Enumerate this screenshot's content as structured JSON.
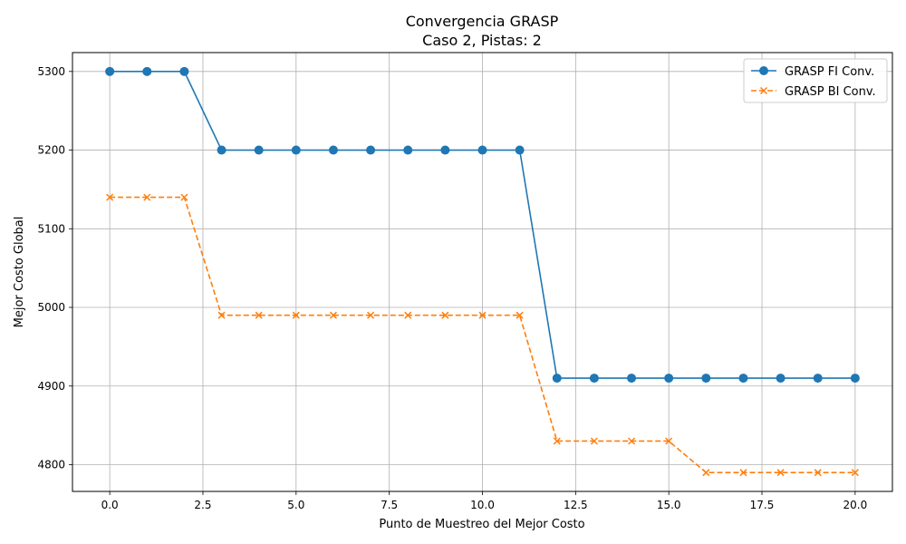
{
  "chart_data": {
    "type": "line",
    "title": "Convergencia GRASP",
    "subtitle": "Caso 2, Pistas: 2",
    "xlabel": "Punto de Muestreo del Mejor Costo",
    "ylabel": "Mejor Costo Global",
    "xlim": [
      -1.0,
      21.0
    ],
    "ylim": [
      4766,
      5324
    ],
    "x_ticks": [
      0.0,
      2.5,
      5.0,
      7.5,
      10.0,
      12.5,
      15.0,
      17.5,
      20.0
    ],
    "x_tick_labels": [
      "0.0",
      "2.5",
      "5.0",
      "7.5",
      "10.0",
      "12.5",
      "15.0",
      "17.5",
      "20.0"
    ],
    "y_ticks": [
      4800,
      4900,
      5000,
      5100,
      5200,
      5300
    ],
    "y_tick_labels": [
      "4800",
      "4900",
      "5000",
      "5100",
      "5200",
      "5300"
    ],
    "grid": true,
    "legend_position": "top-right",
    "x": [
      0,
      1,
      2,
      3,
      4,
      5,
      6,
      7,
      8,
      9,
      10,
      11,
      12,
      13,
      14,
      15,
      16,
      17,
      18,
      19,
      20
    ],
    "series": [
      {
        "name": "GRASP FI Conv.",
        "color": "#1f77b4",
        "line_style": "solid",
        "marker": "circle",
        "values": [
          5300,
          5300,
          5300,
          5200,
          5200,
          5200,
          5200,
          5200,
          5200,
          5200,
          5200,
          5200,
          4910,
          4910,
          4910,
          4910,
          4910,
          4910,
          4910,
          4910,
          4910
        ]
      },
      {
        "name": "GRASP BI Conv.",
        "color": "#ff7f0e",
        "line_style": "dashed",
        "marker": "x",
        "values": [
          5140,
          5140,
          5140,
          4990,
          4990,
          4990,
          4990,
          4990,
          4990,
          4990,
          4990,
          4990,
          4830,
          4830,
          4830,
          4830,
          4790,
          4790,
          4790,
          4790,
          4790
        ]
      }
    ]
  }
}
